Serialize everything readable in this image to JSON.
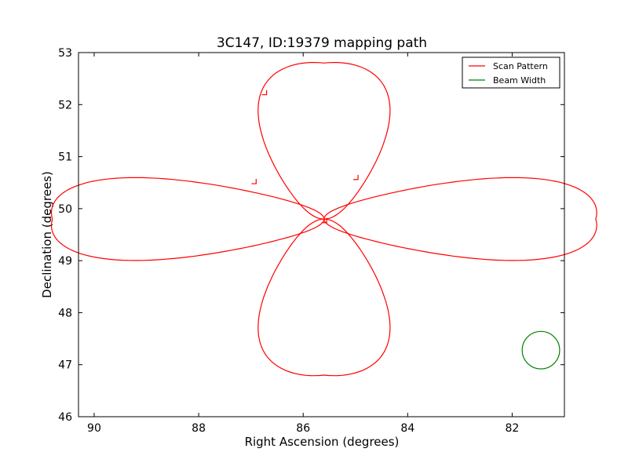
{
  "chart_data": {
    "type": "line",
    "title": "3C147, ID:19379 mapping path",
    "xlabel": "Right Ascension (degrees)",
    "ylabel": "Declination (degrees)",
    "xlim": [
      90.3,
      81.0
    ],
    "ylim": [
      46,
      53
    ],
    "x_ticks": [
      90,
      88,
      86,
      84,
      82
    ],
    "y_ticks": [
      46,
      47,
      48,
      49,
      50,
      51,
      52,
      53
    ],
    "grid": false,
    "legend_position": "top-right",
    "legend": [
      {
        "label": "Scan Pattern",
        "color": "#ff0000"
      },
      {
        "label": "Beam Width",
        "color": "#008000"
      }
    ],
    "series": [
      {
        "name": "Scan Pattern",
        "color": "#ff0000",
        "kind": "four-petal rosette",
        "center": [
          85.6,
          49.8
        ],
        "petal_length_ra": 5.2,
        "petal_length_dec": 3.0,
        "petal_half_width_ra": 1.3,
        "petal_half_width_dec": 0.82,
        "notes_steps": [
          {
            "ra": 86.9,
            "dec": 50.48
          },
          {
            "ra": 86.7,
            "dec": 52.19
          },
          {
            "ra": 84.95,
            "dec": 50.56
          },
          {
            "ra": 85.55,
            "dec": 49.73
          }
        ]
      },
      {
        "name": "Beam Width",
        "color": "#008000",
        "kind": "circle",
        "center": [
          81.45,
          47.28
        ],
        "radius_dec": 0.36
      }
    ]
  }
}
